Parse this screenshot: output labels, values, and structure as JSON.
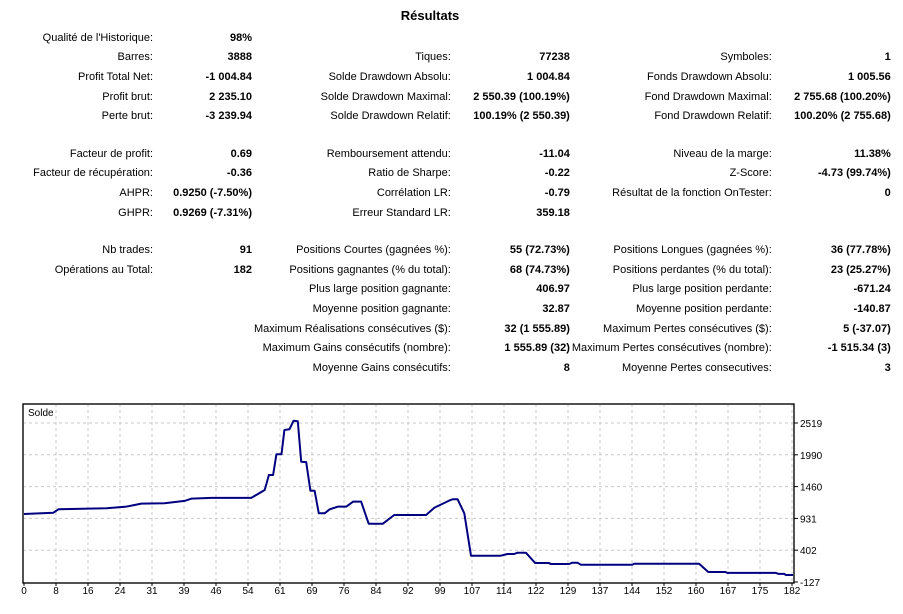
{
  "title": "Résultats",
  "rows": [
    [
      {
        "label": "Qualité de l'Historique:",
        "value": "98%"
      },
      null,
      null
    ],
    [
      {
        "label": "Barres:",
        "value": "3888"
      },
      {
        "label": "Tiques:",
        "value": "77238"
      },
      {
        "label": "Symboles:",
        "value": "1"
      }
    ],
    [
      {
        "label": "Profit Total Net:",
        "value": "-1 004.84"
      },
      {
        "label": "Solde Drawdown Absolu:",
        "value": "1 004.84"
      },
      {
        "label": "Fonds Drawdown Absolu:",
        "value": "1 005.56"
      }
    ],
    [
      {
        "label": "Profit brut:",
        "value": "2 235.10"
      },
      {
        "label": "Solde Drawdown Maximal:",
        "value": "2 550.39 (100.19%)"
      },
      {
        "label": "Fond Drawdown Maximal:",
        "value": "2 755.68 (100.20%)"
      }
    ],
    [
      {
        "label": "Perte brut:",
        "value": "-3 239.94"
      },
      {
        "label": "Solde Drawdown Relatif:",
        "value": "100.19% (2 550.39)"
      },
      {
        "label": "Fond Drawdown Relatif:",
        "value": "100.20% (2 755.68)"
      }
    ],
    null,
    [
      {
        "label": "Facteur de profit:",
        "value": "0.69"
      },
      {
        "label": "Remboursement attendu:",
        "value": "-11.04"
      },
      {
        "label": "Niveau de la marge:",
        "value": "11.38%"
      }
    ],
    [
      {
        "label": "Facteur de récupération:",
        "value": "-0.36"
      },
      {
        "label": "Ratio de Sharpe:",
        "value": "-0.22"
      },
      {
        "label": "Z-Score:",
        "value": "-4.73 (99.74%)"
      }
    ],
    [
      {
        "label": "AHPR:",
        "value": "0.9250 (-7.50%)"
      },
      {
        "label": "Corrélation LR:",
        "value": "-0.79"
      },
      {
        "label": "Résultat de la fonction OnTester:",
        "value": "0"
      }
    ],
    [
      {
        "label": "GHPR:",
        "value": "0.9269 (-7.31%)"
      },
      {
        "label": "Erreur Standard LR:",
        "value": "359.18"
      },
      null
    ],
    null,
    [
      {
        "label": "Nb trades:",
        "value": "91"
      },
      {
        "label": "Positions Courtes (gagnées %):",
        "value": "55 (72.73%)"
      },
      {
        "label": "Positions Longues (gagnées %):",
        "value": "36 (77.78%)"
      }
    ],
    [
      {
        "label": "Opérations au Total:",
        "value": "182"
      },
      {
        "label": "Positions gagnantes (% du total):",
        "value": "68 (74.73%)"
      },
      {
        "label": "Positions perdantes (% du total):",
        "value": "23 (25.27%)"
      }
    ],
    [
      null,
      {
        "label": "Plus large position gagnante:",
        "value": "406.97"
      },
      {
        "label": "Plus large position perdante:",
        "value": "-671.24"
      }
    ],
    [
      null,
      {
        "label": "Moyenne position gagnante:",
        "value": "32.87"
      },
      {
        "label": "Moyenne position perdante:",
        "value": "-140.87"
      }
    ],
    [
      null,
      {
        "label": "Maximum Réalisations consécutives ($):",
        "value": "32 (1 555.89)"
      },
      {
        "label": "Maximum Pertes consécutives ($):",
        "value": "5 (-37.07)"
      }
    ],
    [
      null,
      {
        "label": "Maximum Gains consécutifs (nombre):",
        "value": "1 555.89 (32)"
      },
      {
        "label": "Maximum Pertes consécutives (nombre):",
        "value": "-1 515.34 (3)"
      }
    ],
    [
      null,
      {
        "label": "Moyenne Gains consécutifs:",
        "value": "8"
      },
      {
        "label": "Moyenne Pertes consecutives:",
        "value": "3"
      }
    ]
  ],
  "chart_data": {
    "type": "line",
    "title": "Solde",
    "line_color": "#000080",
    "ylim": [
      -127,
      2519
    ],
    "xlim": [
      0,
      183.4
    ],
    "yticks": [
      "2519",
      "1990",
      "1460",
      "931",
      "402",
      "-127"
    ],
    "xticks": [
      "0",
      "8",
      "16",
      "24",
      "31",
      "39",
      "46",
      "54",
      "61",
      "69",
      "76",
      "84",
      "92",
      "99",
      "107",
      "114",
      "122",
      "129",
      "137",
      "144",
      "152",
      "160",
      "167",
      "175",
      "182"
    ],
    "series": [
      {
        "name": "Solde",
        "x": [
          0,
          7,
          8.2,
          19.7,
          24.4,
          26.8,
          28,
          33.5,
          38.3,
          40,
          44.7,
          54.2,
          57.4,
          58.4,
          59.4,
          60.2,
          61.4,
          62.1,
          63.3,
          64.3,
          65.3,
          66.1,
          67.3,
          68.3,
          69.3,
          70.3,
          71.7,
          72.9,
          74.9,
          76.9,
          78.5,
          80.4,
          82.2,
          85.6,
          88.3,
          95.9,
          97.9,
          101.4,
          102.2,
          103.4,
          105,
          106.6,
          113.7,
          115.3,
          116.9,
          117.7,
          119.7,
          121.9,
          125.2,
          125.6,
          130,
          130.8,
          132,
          132.8,
          145.1,
          145.5,
          161,
          163.2,
          167.3,
          167.7,
          179.3,
          180,
          181.3,
          181.7,
          183.4
        ],
        "y": [
          1005,
          1026,
          1083,
          1100,
          1128,
          1161,
          1178,
          1183,
          1222,
          1261,
          1272,
          1272,
          1404,
          1654,
          1654,
          1998,
          1998,
          2403,
          2414,
          2557,
          2547,
          1875,
          1869,
          1393,
          1393,
          1016,
          1016,
          1083,
          1128,
          1128,
          1211,
          1211,
          843,
          843,
          988,
          988,
          1111,
          1228,
          1249,
          1249,
          1016,
          311,
          311,
          339,
          339,
          361,
          361,
          189,
          189,
          172,
          172,
          194,
          194,
          161,
          161,
          178,
          178,
          40,
          40,
          24,
          24,
          7,
          7,
          -10,
          -10
        ]
      }
    ]
  }
}
